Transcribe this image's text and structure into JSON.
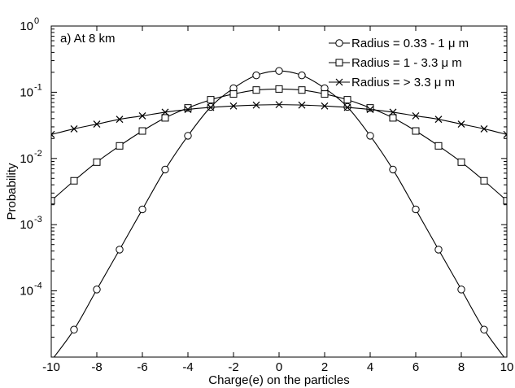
{
  "chart_data": {
    "type": "line",
    "annotation": "a)  At 8 km",
    "xlabel": "Charge(e) on the particles",
    "ylabel": "Probability",
    "xlim": [
      -10,
      10
    ],
    "ylim_log10": [
      -5,
      0
    ],
    "yscale": "log",
    "grid": false,
    "legend_position": "top-right",
    "x_ticks": [
      -10,
      -8,
      -6,
      -4,
      -2,
      0,
      2,
      4,
      6,
      8,
      10
    ],
    "x_tick_labels": [
      "-10",
      "-8",
      "-6",
      "-4",
      "-2",
      "0",
      "2",
      "4",
      "6",
      "8",
      "10"
    ],
    "y_ticks": [
      1,
      0.1,
      0.01,
      0.001,
      0.0001
    ],
    "y_tick_labels": [
      {
        "base": "10",
        "exp": "0"
      },
      {
        "base": "10",
        "exp": "-1"
      },
      {
        "base": "10",
        "exp": "-2"
      },
      {
        "base": "10",
        "exp": "-3"
      },
      {
        "base": "10",
        "exp": "-4"
      }
    ],
    "series": [
      {
        "name": "Radius = 0.33 - 1 μ m",
        "marker": "circle",
        "color": "#000000",
        "x": [
          -10,
          -9,
          -8,
          -7,
          -6,
          -5,
          -4,
          -3,
          -2,
          -1,
          0,
          1,
          2,
          3,
          4,
          5,
          6,
          7,
          8,
          9,
          10
        ],
        "y": [
          8.8e-06,
          2.6e-05,
          0.000105,
          0.00042,
          0.0017,
          0.0068,
          0.022,
          0.06,
          0.115,
          0.18,
          0.21,
          0.18,
          0.115,
          0.06,
          0.022,
          0.0068,
          0.0017,
          0.00042,
          0.000105,
          2.6e-05,
          8.8e-06
        ]
      },
      {
        "name": "Radius = 1 - 3.3 μ m",
        "marker": "square",
        "color": "#000000",
        "x": [
          -10,
          -9,
          -8,
          -7,
          -6,
          -5,
          -4,
          -3,
          -2,
          -1,
          0,
          1,
          2,
          3,
          4,
          5,
          6,
          7,
          8,
          9,
          10
        ],
        "y": [
          0.0023,
          0.0046,
          0.0088,
          0.0155,
          0.026,
          0.041,
          0.058,
          0.077,
          0.094,
          0.108,
          0.112,
          0.108,
          0.094,
          0.077,
          0.058,
          0.041,
          0.026,
          0.0155,
          0.0088,
          0.0046,
          0.0023
        ]
      },
      {
        "name": "Radius = > 3.3 μ m",
        "marker": "x",
        "color": "#000000",
        "x": [
          -10,
          -9,
          -8,
          -7,
          -6,
          -5,
          -4,
          -3,
          -2,
          -1,
          0,
          1,
          2,
          3,
          4,
          5,
          6,
          7,
          8,
          9,
          10
        ],
        "y": [
          0.023,
          0.028,
          0.033,
          0.039,
          0.044,
          0.05,
          0.055,
          0.059,
          0.062,
          0.064,
          0.065,
          0.064,
          0.062,
          0.059,
          0.055,
          0.05,
          0.044,
          0.039,
          0.033,
          0.028,
          0.023
        ]
      }
    ]
  }
}
